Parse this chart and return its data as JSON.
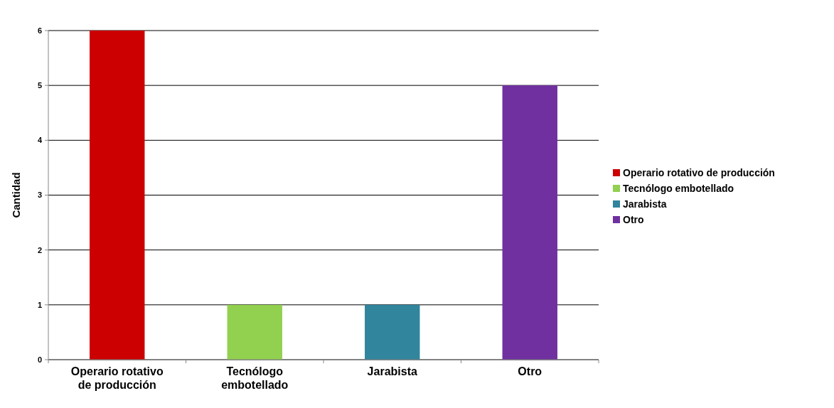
{
  "chart_data": {
    "type": "bar",
    "ylabel": "Cantidad",
    "categories": [
      "Operario rotativo de producción",
      "Tecnólogo embotellado",
      "Jarabista",
      "Otro"
    ],
    "series": [
      {
        "name": "Operario rotativo de producción",
        "color": "#cc0000",
        "values": [
          6,
          null,
          null,
          null
        ]
      },
      {
        "name": "Tecnólogo embotellado",
        "color": "#92d050",
        "values": [
          null,
          1,
          null,
          null
        ]
      },
      {
        "name": "Jarabista",
        "color": "#31859c",
        "values": [
          null,
          null,
          1,
          null
        ]
      },
      {
        "name": "Otro",
        "color": "#7030a0",
        "values": [
          null,
          null,
          null,
          5
        ]
      }
    ],
    "ylim": [
      0,
      6
    ],
    "yticks": [
      0,
      1,
      2,
      3,
      4,
      5,
      6
    ],
    "grid": "y",
    "legend": "right"
  }
}
